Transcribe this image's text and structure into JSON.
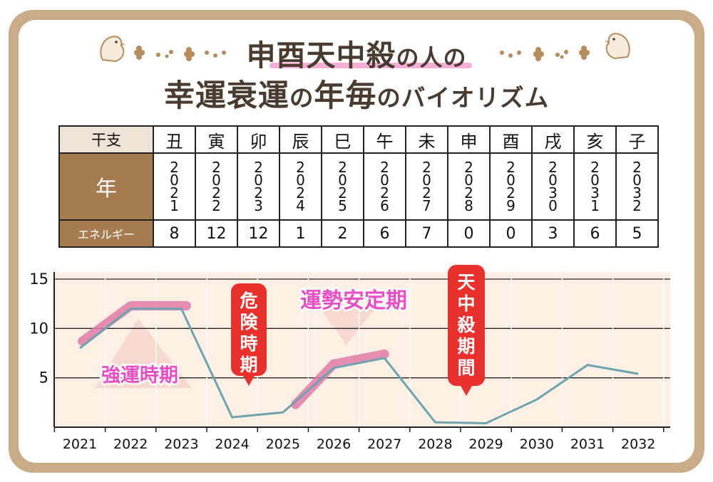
{
  "title": {
    "line1_main": "申酉天中殺",
    "line1_suffix": "の人の",
    "line2_a": "幸運衰運",
    "line2_b": "の",
    "line2_c": "年毎",
    "line2_d": "のバイオリズム"
  },
  "table": {
    "row_labels": {
      "branch": "干支",
      "year": "年",
      "energy": "エネルギー"
    },
    "columns": [
      {
        "branch": "丑",
        "year": "2021",
        "energy": "8"
      },
      {
        "branch": "寅",
        "year": "2022",
        "energy": "12"
      },
      {
        "branch": "卯",
        "year": "2023",
        "energy": "12"
      },
      {
        "branch": "辰",
        "year": "2024",
        "energy": "1"
      },
      {
        "branch": "巳",
        "year": "2025",
        "energy": "2"
      },
      {
        "branch": "午",
        "year": "2026",
        "energy": "6"
      },
      {
        "branch": "未",
        "year": "2027",
        "energy": "7"
      },
      {
        "branch": "申",
        "year": "2028",
        "energy": "0"
      },
      {
        "branch": "酉",
        "year": "2029",
        "energy": "0"
      },
      {
        "branch": "戌",
        "year": "2030",
        "energy": "3"
      },
      {
        "branch": "亥",
        "year": "2031",
        "energy": "6"
      },
      {
        "branch": "子",
        "year": "2032",
        "energy": "5"
      }
    ]
  },
  "chart_data": {
    "type": "line",
    "x": [
      "2021",
      "2022",
      "2023",
      "2024",
      "2025",
      "2026",
      "2027",
      "2028",
      "2029",
      "2030",
      "2031",
      "2032"
    ],
    "values": [
      8,
      12,
      12,
      1,
      1.5,
      6,
      7,
      0.5,
      0.4,
      2.8,
      6.3,
      5.4
    ],
    "ylim": [
      0,
      15
    ],
    "yticks": [
      "15",
      "10",
      "5"
    ],
    "grid": true,
    "annotations": {
      "strong": "強運時期",
      "danger": "危険時期",
      "stable": "運勢安定期",
      "tenchusatsu": "天中殺期間"
    },
    "colors": {
      "line": "#6fa3b0",
      "highlight": "#e07aa8",
      "panel": "#fcefe4",
      "red": "#e8302c",
      "phase_text": "#e84fc4"
    }
  }
}
